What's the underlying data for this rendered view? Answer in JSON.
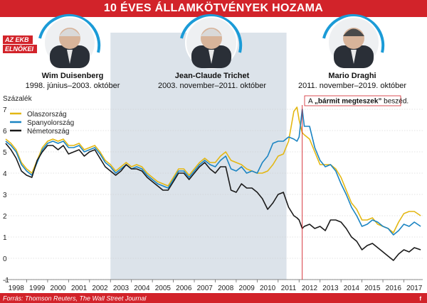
{
  "title": "10 ÉVES ÁLLAMKÖTVÉNYEK HOZAMA",
  "ekb_tag": [
    "AZ EKB",
    "ELNÖKEI"
  ],
  "presidents": [
    {
      "name": "Wim Duisenberg",
      "term": "1998. június–2003. október"
    },
    {
      "name": "Jean-Claude Trichet",
      "term": "2003. november–2011. október"
    },
    {
      "name": "Mario Draghi",
      "term": "2011. november–2019. október"
    }
  ],
  "annotation": {
    "prefix": "A ",
    "quote": "„bármit megteszek”",
    "suffix": " beszéd."
  },
  "source": "Forrás: Thomson Reuters, The Wall Street Journal",
  "corner_mark": "f",
  "colors": {
    "banner": "#d2232a",
    "italy": "#e3b713",
    "spain": "#1b84c2",
    "germany": "#1a1a1a",
    "trichet_band": "#dce3ea",
    "ring": "#1b9bd7"
  },
  "chart_data": {
    "type": "line",
    "ylabel": "Százalék",
    "ylim": [
      -1,
      7.2
    ],
    "yticks": [
      -1,
      0,
      1,
      2,
      3,
      4,
      5,
      6,
      7
    ],
    "xlim": [
      1998,
      2017.9
    ],
    "xtick_labels": [
      "1998",
      "1999",
      "2000",
      "2001",
      "2002",
      "2003",
      "2004",
      "2005",
      "2006",
      "2007",
      "2008",
      "2009",
      "2010",
      "2011",
      "2012",
      "2013",
      "2014",
      "2015",
      "2016",
      "2017"
    ],
    "grid": true,
    "legend": "top-left",
    "shaded_period": [
      2003.0,
      2011.4
    ],
    "event_line_x": 2012.15,
    "series": [
      {
        "name": "Olaszország",
        "color": "#e3b713",
        "x": [
          1998.0,
          1998.25,
          1998.5,
          1998.75,
          1999.0,
          1999.25,
          1999.5,
          1999.75,
          2000.0,
          2000.25,
          2000.5,
          2000.75,
          2001.0,
          2001.25,
          2001.5,
          2001.75,
          2002.0,
          2002.25,
          2002.5,
          2002.75,
          2003.0,
          2003.25,
          2003.5,
          2003.75,
          2004.0,
          2004.25,
          2004.5,
          2004.75,
          2005.0,
          2005.25,
          2005.5,
          2005.75,
          2006.0,
          2006.25,
          2006.5,
          2006.75,
          2007.0,
          2007.25,
          2007.5,
          2007.75,
          2008.0,
          2008.25,
          2008.5,
          2008.75,
          2009.0,
          2009.25,
          2009.5,
          2009.75,
          2010.0,
          2010.25,
          2010.5,
          2010.75,
          2011.0,
          2011.25,
          2011.5,
          2011.75,
          2011.9,
          2012.0,
          2012.15,
          2012.25,
          2012.5,
          2012.75,
          2013.0,
          2013.25,
          2013.5,
          2013.75,
          2014.0,
          2014.25,
          2014.5,
          2014.75,
          2015.0,
          2015.25,
          2015.5,
          2015.75,
          2016.0,
          2016.25,
          2016.5,
          2016.75,
          2017.0,
          2017.25,
          2017.5,
          2017.8
        ],
        "values": [
          5.6,
          5.4,
          5.1,
          4.5,
          4.2,
          4.0,
          4.6,
          5.2,
          5.5,
          5.6,
          5.5,
          5.6,
          5.3,
          5.3,
          5.4,
          5.1,
          5.2,
          5.3,
          5.0,
          4.6,
          4.4,
          4.1,
          4.3,
          4.5,
          4.3,
          4.4,
          4.3,
          4.0,
          3.8,
          3.6,
          3.5,
          3.4,
          3.8,
          4.2,
          4.2,
          3.9,
          4.2,
          4.5,
          4.7,
          4.5,
          4.5,
          4.8,
          5.0,
          4.6,
          4.5,
          4.4,
          4.2,
          4.1,
          4.0,
          4.0,
          4.1,
          4.4,
          4.8,
          4.9,
          5.5,
          6.9,
          7.1,
          6.5,
          5.9,
          5.8,
          5.6,
          5.0,
          4.4,
          4.4,
          4.4,
          4.2,
          3.8,
          3.2,
          2.6,
          2.3,
          1.8,
          1.8,
          1.9,
          1.6,
          1.5,
          1.4,
          1.2,
          1.7,
          2.1,
          2.2,
          2.2,
          2.0
        ]
      },
      {
        "name": "Spanyolország",
        "color": "#1b84c2",
        "x": [
          1998.0,
          1998.25,
          1998.5,
          1998.75,
          1999.0,
          1999.25,
          1999.5,
          1999.75,
          2000.0,
          2000.25,
          2000.5,
          2000.75,
          2001.0,
          2001.25,
          2001.5,
          2001.75,
          2002.0,
          2002.25,
          2002.5,
          2002.75,
          2003.0,
          2003.25,
          2003.5,
          2003.75,
          2004.0,
          2004.25,
          2004.5,
          2004.75,
          2005.0,
          2005.25,
          2005.5,
          2005.75,
          2006.0,
          2006.25,
          2006.5,
          2006.75,
          2007.0,
          2007.25,
          2007.5,
          2007.75,
          2008.0,
          2008.25,
          2008.5,
          2008.75,
          2009.0,
          2009.25,
          2009.5,
          2009.75,
          2010.0,
          2010.25,
          2010.5,
          2010.75,
          2011.0,
          2011.25,
          2011.5,
          2011.75,
          2011.9,
          2012.0,
          2012.15,
          2012.25,
          2012.5,
          2012.75,
          2013.0,
          2013.25,
          2013.5,
          2013.75,
          2014.0,
          2014.25,
          2014.5,
          2014.75,
          2015.0,
          2015.25,
          2015.5,
          2015.75,
          2016.0,
          2016.25,
          2016.5,
          2016.75,
          2017.0,
          2017.25,
          2017.5,
          2017.8
        ],
        "values": [
          5.5,
          5.3,
          5.0,
          4.4,
          4.1,
          3.9,
          4.5,
          5.1,
          5.4,
          5.5,
          5.4,
          5.5,
          5.2,
          5.2,
          5.3,
          5.0,
          5.1,
          5.2,
          4.9,
          4.5,
          4.3,
          4.0,
          4.2,
          4.4,
          4.2,
          4.3,
          4.2,
          3.9,
          3.7,
          3.5,
          3.4,
          3.3,
          3.7,
          4.1,
          4.1,
          3.8,
          4.1,
          4.4,
          4.6,
          4.4,
          4.3,
          4.6,
          4.8,
          4.2,
          4.1,
          4.3,
          4.0,
          4.1,
          4.0,
          4.5,
          4.8,
          5.4,
          5.5,
          5.5,
          5.7,
          5.6,
          5.5,
          5.7,
          7.0,
          6.2,
          6.2,
          5.2,
          4.6,
          4.3,
          4.4,
          4.1,
          3.5,
          3.0,
          2.4,
          2.0,
          1.5,
          1.6,
          1.8,
          1.7,
          1.5,
          1.4,
          1.1,
          1.3,
          1.6,
          1.5,
          1.7,
          1.5
        ]
      },
      {
        "name": "Németország",
        "color": "#1a1a1a",
        "x": [
          1998.0,
          1998.25,
          1998.5,
          1998.75,
          1999.0,
          1999.25,
          1999.5,
          1999.75,
          2000.0,
          2000.25,
          2000.5,
          2000.75,
          2001.0,
          2001.25,
          2001.5,
          2001.75,
          2002.0,
          2002.25,
          2002.5,
          2002.75,
          2003.0,
          2003.25,
          2003.5,
          2003.75,
          2004.0,
          2004.25,
          2004.5,
          2004.75,
          2005.0,
          2005.25,
          2005.5,
          2005.75,
          2006.0,
          2006.25,
          2006.5,
          2006.75,
          2007.0,
          2007.25,
          2007.5,
          2007.75,
          2008.0,
          2008.25,
          2008.5,
          2008.75,
          2009.0,
          2009.25,
          2009.5,
          2009.75,
          2010.0,
          2010.25,
          2010.5,
          2010.75,
          2011.0,
          2011.25,
          2011.5,
          2011.75,
          2011.9,
          2012.0,
          2012.15,
          2012.25,
          2012.5,
          2012.75,
          2013.0,
          2013.25,
          2013.5,
          2013.75,
          2014.0,
          2014.25,
          2014.5,
          2014.75,
          2015.0,
          2015.25,
          2015.5,
          2015.75,
          2016.0,
          2016.25,
          2016.5,
          2016.75,
          2017.0,
          2017.25,
          2017.5,
          2017.8
        ],
        "values": [
          5.4,
          5.1,
          4.7,
          4.1,
          3.9,
          3.8,
          4.6,
          5.0,
          5.3,
          5.3,
          5.1,
          5.3,
          4.9,
          5.0,
          5.1,
          4.8,
          5.0,
          5.1,
          4.7,
          4.3,
          4.1,
          3.9,
          4.1,
          4.4,
          4.2,
          4.2,
          4.1,
          3.8,
          3.6,
          3.4,
          3.2,
          3.2,
          3.6,
          4.0,
          4.0,
          3.7,
          4.0,
          4.3,
          4.5,
          4.2,
          4.0,
          4.3,
          4.3,
          3.2,
          3.1,
          3.5,
          3.3,
          3.3,
          3.1,
          2.8,
          2.3,
          2.6,
          3.0,
          3.1,
          2.4,
          2.0,
          1.9,
          1.8,
          1.4,
          1.5,
          1.6,
          1.4,
          1.5,
          1.3,
          1.8,
          1.8,
          1.7,
          1.4,
          1.0,
          0.8,
          0.4,
          0.6,
          0.7,
          0.5,
          0.3,
          0.1,
          -0.1,
          0.2,
          0.4,
          0.3,
          0.5,
          0.4
        ]
      }
    ]
  }
}
